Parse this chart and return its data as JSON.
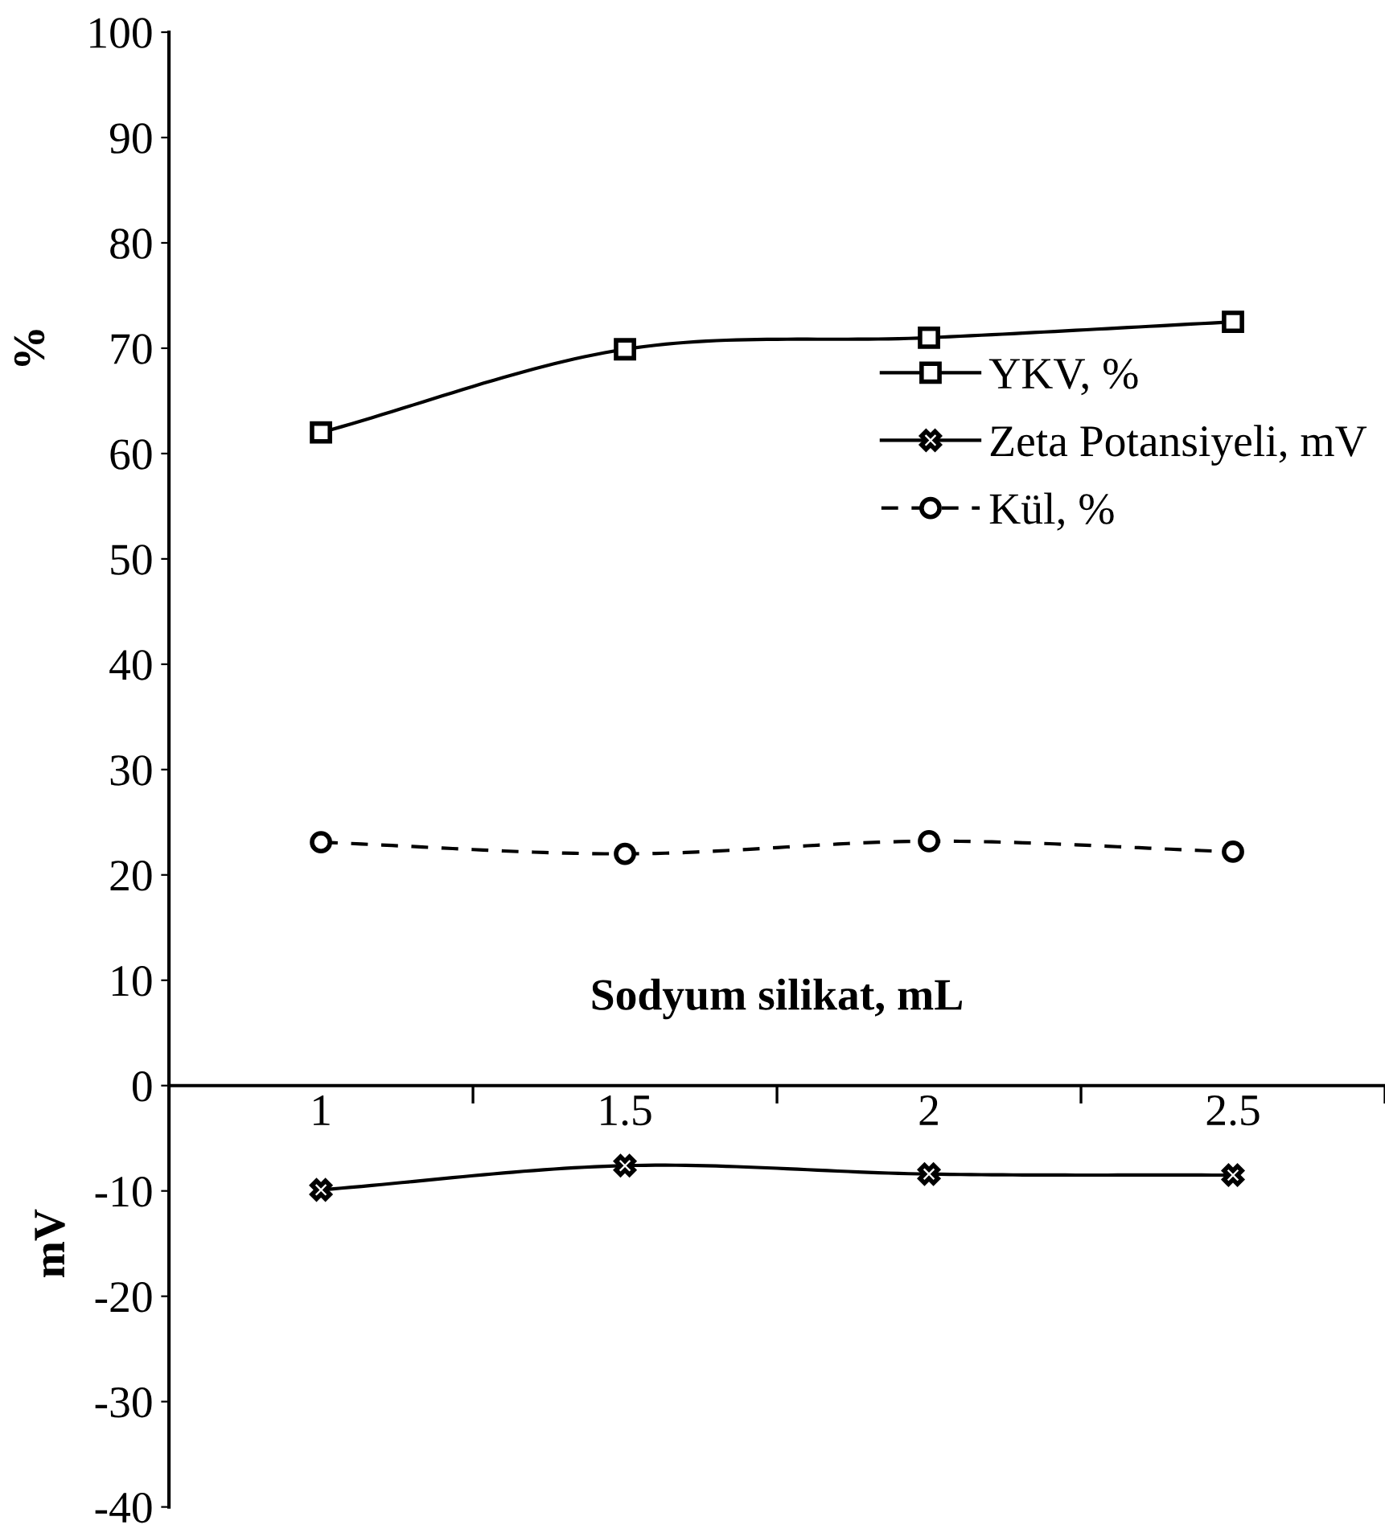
{
  "chart_data": {
    "type": "line",
    "xlabel": "Sodyum silikat, mL",
    "ylabel": "%",
    "annotations": [
      "mV"
    ],
    "categories": [
      "1",
      "1.5",
      "2",
      "2.5"
    ],
    "ylim": [
      -40,
      100
    ],
    "yticks": [
      -40,
      -30,
      -20,
      -10,
      0,
      10,
      20,
      30,
      40,
      50,
      60,
      70,
      80,
      90,
      100
    ],
    "grid": false,
    "legend": "right",
    "series": [
      {
        "name": "YKV, %",
        "color": "#000000",
        "marker": "square",
        "line_style": "solid",
        "values": [
          62,
          69.9,
          71,
          72.5
        ]
      },
      {
        "name": "Zeta Potansiyeli, mV",
        "color": "#000000",
        "marker": "cross",
        "line_style": "solid",
        "values": [
          -9.9,
          -7.6,
          -8.4,
          -8.5
        ]
      },
      {
        "name": "Kül, %",
        "color": "#000000",
        "marker": "circle",
        "line_style": "dashed",
        "values": [
          23.1,
          22,
          23.2,
          22.2
        ]
      }
    ]
  }
}
